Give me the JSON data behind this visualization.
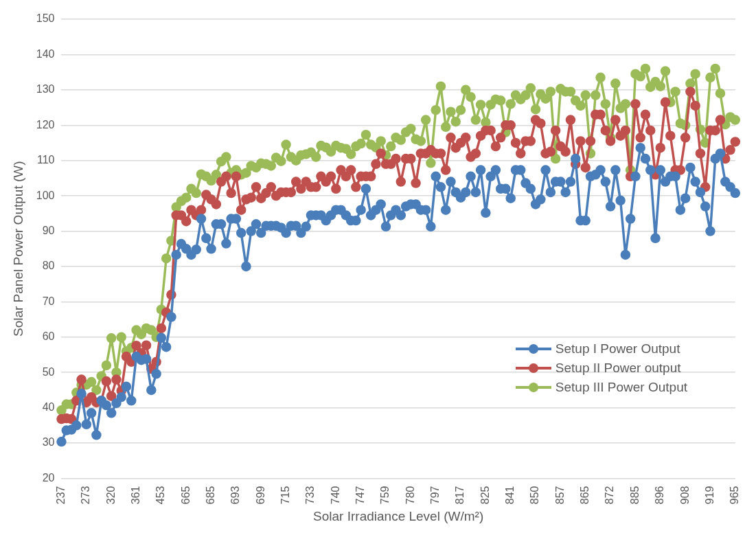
{
  "chart_data": {
    "type": "line",
    "xlabel": "Solar Irradiance Level (W/m²)",
    "ylabel": "Solar Panel Power Output (W)",
    "categories": [
      "237",
      null,
      null,
      null,
      null,
      "273",
      null,
      null,
      null,
      null,
      "320",
      null,
      null,
      null,
      null,
      "361",
      null,
      null,
      null,
      null,
      "453",
      null,
      null,
      null,
      null,
      "665",
      null,
      null,
      null,
      null,
      "685",
      null,
      null,
      null,
      null,
      "693",
      null,
      null,
      null,
      null,
      "699",
      null,
      null,
      null,
      null,
      "715",
      null,
      null,
      null,
      null,
      "733",
      null,
      null,
      null,
      null,
      "740",
      null,
      null,
      null,
      null,
      "747",
      null,
      null,
      null,
      null,
      "759",
      null,
      null,
      null,
      null,
      "780",
      null,
      null,
      null,
      null,
      "797",
      null,
      null,
      null,
      null,
      "817",
      null,
      null,
      null,
      null,
      "825",
      null,
      null,
      null,
      null,
      "841",
      null,
      null,
      null,
      null,
      "850",
      null,
      null,
      null,
      null,
      "857",
      null,
      null,
      null,
      null,
      "865",
      null,
      null,
      null,
      null,
      "872",
      null,
      null,
      null,
      null,
      "885",
      null,
      null,
      null,
      null,
      "896",
      null,
      null,
      null,
      null,
      "908",
      null,
      null,
      null,
      null,
      "919",
      null,
      null,
      null,
      null,
      "965"
    ],
    "series": [
      {
        "name": "Setup I Power Output",
        "color": "#4a7ebb",
        "values": [
          30.4,
          33.6,
          33.8,
          35,
          44,
          35.3,
          38.5,
          32.3,
          42,
          40.7,
          38.5,
          41.3,
          43,
          46,
          42,
          54.5,
          53.5,
          53.8,
          45,
          49.6,
          59.8,
          57.2,
          65.7,
          83.3,
          86.4,
          85,
          83.3,
          84.8,
          93.5,
          88,
          85,
          92,
          92,
          86.5,
          93.5,
          93.5,
          89.5,
          80,
          90,
          92,
          89.5,
          91.5,
          91.5,
          91.5,
          91,
          89.5,
          91.5,
          91.5,
          89.5,
          91.3,
          94.5,
          94.5,
          94.5,
          93,
          94.5,
          96,
          96,
          94.5,
          93,
          93,
          96,
          102,
          94.5,
          96,
          97.6,
          91.3,
          94.5,
          96,
          94.5,
          97,
          97.6,
          97.6,
          96,
          96,
          91.3,
          105.5,
          102.5,
          96,
          104,
          101,
          99.5,
          101,
          105.5,
          101,
          107.3,
          95.2,
          105.5,
          107.3,
          102,
          102,
          99.3,
          107.3,
          107.3,
          103.6,
          102,
          97.6,
          99,
          107.3,
          101,
          104,
          104,
          101,
          104,
          110.5,
          93,
          93,
          105.5,
          106,
          107.3,
          104,
          97,
          107.3,
          98.7,
          83.3,
          93.5,
          105.5,
          113.6,
          110.5,
          107.3,
          88,
          107.3,
          104,
          105.5,
          105.5,
          96,
          99.3,
          108,
          104,
          101,
          97,
          90,
          110.5,
          112,
          104,
          102.5,
          100.8
        ]
      },
      {
        "name": "Setup II Power output",
        "color": "#c0504d",
        "values": [
          36.8,
          37,
          36.8,
          42,
          48,
          41.5,
          43,
          41.5,
          42,
          47.5,
          43.3,
          48,
          44.8,
          54.5,
          53,
          57.6,
          55.5,
          57.7,
          51,
          53,
          62.5,
          67,
          72,
          94.5,
          94.5,
          92.8,
          96,
          94.5,
          96,
          100.3,
          99,
          97.6,
          104,
          105.5,
          100.8,
          105.5,
          96,
          99,
          99.5,
          102.5,
          99.3,
          100.8,
          102.5,
          100,
          101,
          101,
          101,
          104,
          102,
          104,
          102.5,
          102.5,
          105.5,
          104,
          105.5,
          102,
          107.3,
          105.5,
          107.3,
          102.5,
          105.5,
          105.5,
          105.5,
          109,
          112,
          109,
          109,
          110.5,
          104,
          110.5,
          110.5,
          103.6,
          112,
          112,
          113,
          112,
          112,
          107.3,
          116.5,
          113.6,
          115,
          116.5,
          111,
          112,
          117,
          118.5,
          118.5,
          114,
          116.5,
          120,
          120,
          115,
          112,
          115.5,
          115.5,
          121.5,
          120.5,
          112,
          112.5,
          118.5,
          114,
          112.5,
          121.5,
          109,
          115.5,
          108,
          115.5,
          123,
          123,
          118.5,
          115.5,
          121.5,
          117,
          118.5,
          105.5,
          126,
          116.5,
          123,
          118.5,
          106,
          113.6,
          126.5,
          117,
          107.3,
          107.3,
          116.5,
          129.5,
          125.5,
          112,
          102.5,
          118.5,
          118.5,
          121.5,
          110.5,
          113,
          115.3
        ]
      },
      {
        "name": "Setup III Power Output",
        "color": "#9bbb59",
        "values": [
          39.3,
          41,
          41,
          44.3,
          46.5,
          46.5,
          47.3,
          45,
          49,
          52,
          59.7,
          50,
          60,
          56,
          57,
          62,
          60.8,
          62.5,
          62,
          60,
          67.8,
          82.3,
          87.3,
          96.8,
          98.5,
          99.5,
          102,
          100.8,
          106.1,
          105.5,
          104.3,
          106,
          109.7,
          111,
          106.5,
          107.3,
          106,
          106.5,
          108.5,
          108,
          109.2,
          109,
          108.5,
          110.8,
          109.8,
          114.5,
          111,
          110,
          111.5,
          111.8,
          112.3,
          111,
          114.2,
          113.7,
          112.5,
          114.2,
          113.6,
          113.3,
          111.8,
          114,
          114.8,
          117.3,
          114.5,
          113.7,
          115.5,
          111.5,
          114,
          116.5,
          115.8,
          118,
          119,
          116,
          115.5,
          121.5,
          109.3,
          124.3,
          131,
          119.5,
          123.8,
          121,
          124.3,
          130,
          128,
          121.5,
          125.8,
          120.8,
          125.8,
          127.3,
          127,
          118,
          126,
          128.5,
          127.3,
          128.5,
          130.5,
          124.5,
          128.8,
          127.5,
          129.5,
          110.5,
          130.3,
          129.5,
          129.5,
          127,
          125.5,
          128.5,
          112,
          128.5,
          133.5,
          126,
          116.5,
          131.8,
          124.8,
          126,
          107.3,
          134.5,
          133.8,
          136,
          130.8,
          132.3,
          131,
          135.3,
          126.5,
          129.5,
          120.5,
          120,
          131.8,
          134.5,
          118.8,
          115,
          133.5,
          136,
          129,
          120.2,
          122.3,
          121.5
        ]
      }
    ],
    "ylim": [
      20,
      150
    ],
    "yticks": [
      20,
      30,
      40,
      50,
      60,
      70,
      80,
      90,
      100,
      110,
      120,
      130,
      140,
      150
    ],
    "grid": "y",
    "legend": "bottom right",
    "marker": "circle",
    "line_style": "solid"
  }
}
